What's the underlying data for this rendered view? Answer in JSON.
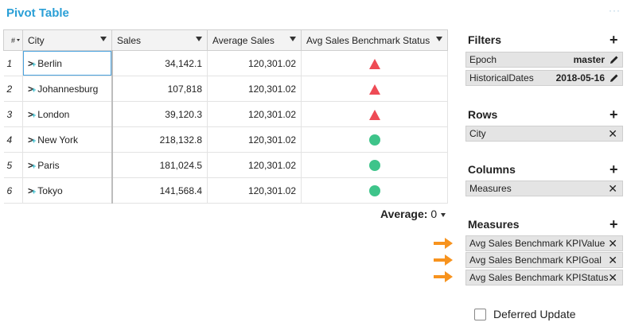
{
  "header": {
    "title": "Pivot Table",
    "more_icon": "more-dots-icon"
  },
  "table": {
    "columns": [
      {
        "key": "index",
        "label": "#"
      },
      {
        "key": "city",
        "label": "City"
      },
      {
        "key": "sales",
        "label": "Sales"
      },
      {
        "key": "avg_sales",
        "label": "Average Sales"
      },
      {
        "key": "status",
        "label": "Avg Sales Benchmark Status"
      }
    ],
    "rows": [
      {
        "index": "1",
        "city": "Berlin",
        "sales": "34,142.1",
        "avg_sales": "120,301.02",
        "status": "below"
      },
      {
        "index": "2",
        "city": "Johannesburg",
        "sales": "107,818",
        "avg_sales": "120,301.02",
        "status": "below"
      },
      {
        "index": "3",
        "city": "London",
        "sales": "39,120.3",
        "avg_sales": "120,301.02",
        "status": "below"
      },
      {
        "index": "4",
        "city": "New York",
        "sales": "218,132.8",
        "avg_sales": "120,301.02",
        "status": "above"
      },
      {
        "index": "5",
        "city": "Paris",
        "sales": "181,024.5",
        "avg_sales": "120,301.02",
        "status": "above"
      },
      {
        "index": "6",
        "city": "Tokyo",
        "sales": "141,568.4",
        "avg_sales": "120,301.02",
        "status": "above"
      }
    ],
    "status_colors": {
      "below": "#ee4b55",
      "above": "#3ec48a"
    }
  },
  "footer": {
    "average_label": "Average:",
    "average_value": "0"
  },
  "panel": {
    "filters": {
      "title": "Filters",
      "items": [
        {
          "label": "Epoch",
          "value": "master"
        },
        {
          "label": "HistoricalDates",
          "value": "2018-05-16"
        }
      ]
    },
    "rows": {
      "title": "Rows",
      "items": [
        {
          "label": "City"
        }
      ]
    },
    "columns": {
      "title": "Columns",
      "items": [
        {
          "label": "Measures"
        }
      ]
    },
    "measures": {
      "title": "Measures",
      "items": [
        {
          "label": "Avg Sales Benchmark KPIValue"
        },
        {
          "label": "Avg Sales Benchmark KPIGoal"
        },
        {
          "label": "Avg Sales Benchmark KPIStatus"
        }
      ]
    },
    "deferred_update": {
      "label": "Deferred Update",
      "checked": false
    }
  },
  "colors": {
    "accent": "#2a9fd6",
    "arrow": "#f7931e",
    "chip": "#e4e4e4"
  }
}
